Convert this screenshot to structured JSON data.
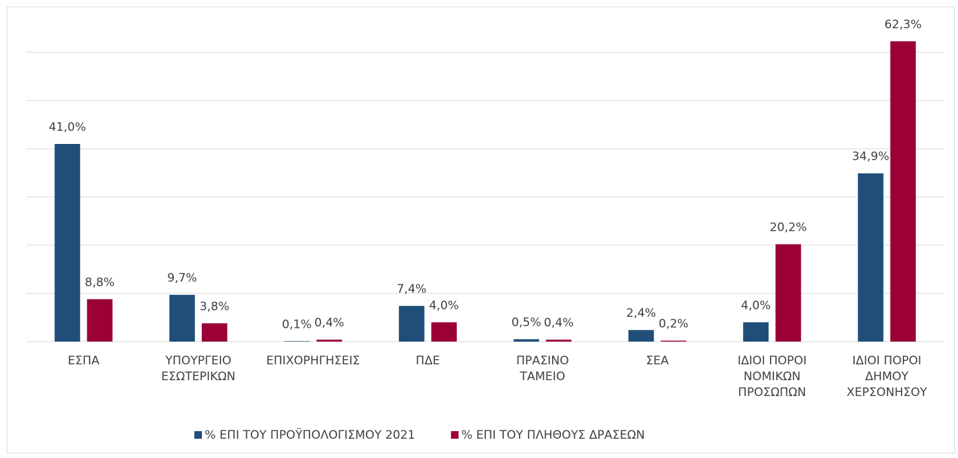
{
  "chart_data": {
    "type": "bar",
    "categories": [
      [
        "ΕΣΠΑ"
      ],
      [
        "ΥΠΟΥΡΓΕΙΟ",
        "ΕΣΩΤΕΡΙΚΩΝ"
      ],
      [
        "ΕΠΙΧΟΡΗΓΗΣΕΙΣ"
      ],
      [
        "ΠΔΕ"
      ],
      [
        "ΠΡΑΣΙΝΟ",
        "ΤΑΜΕΙΟ"
      ],
      [
        "ΣΕΑ"
      ],
      [
        "ΙΔΙΟΙ ΠΟΡΟΙ",
        "ΝΟΜΙΚΩΝ",
        "ΠΡΟΣΩΠΩΝ"
      ],
      [
        "ΙΔΙΟΙ ΠΟΡΟΙ",
        "ΔΗΜΟΥ",
        "ΧΕΡΣΟΝΗΣΟΥ"
      ]
    ],
    "series": [
      {
        "name": "% ΕΠΙ ΤΟΥ ΠΡΟΫΠΟΛΟΓΙΣΜΟΥ 2021",
        "color": "#1f4e79",
        "values": [
          41.0,
          9.7,
          0.1,
          7.4,
          0.5,
          2.4,
          4.0,
          34.9
        ],
        "value_labels": [
          "41,0%",
          "9,7%",
          "0,1%",
          "7,4%",
          "0,5%",
          "2,4%",
          "4,0%",
          "34,9%"
        ]
      },
      {
        "name": "% ΕΠΙ ΤΟΥ ΠΛΗΘΟΥΣ ΔΡΑΣΕΩΝ",
        "color": "#9b0036",
        "values": [
          8.8,
          3.8,
          0.4,
          4.0,
          0.4,
          0.2,
          20.2,
          62.3
        ],
        "value_labels": [
          "8,8%",
          "3,8%",
          "0,4%",
          "4,0%",
          "0,4%",
          "0,2%",
          "20,2%",
          "62,3%"
        ]
      }
    ],
    "ylim": [
      0,
      70
    ],
    "yticks": [
      0,
      10,
      20,
      30,
      40,
      50,
      60
    ],
    "grid": true,
    "legend": "bottom"
  }
}
